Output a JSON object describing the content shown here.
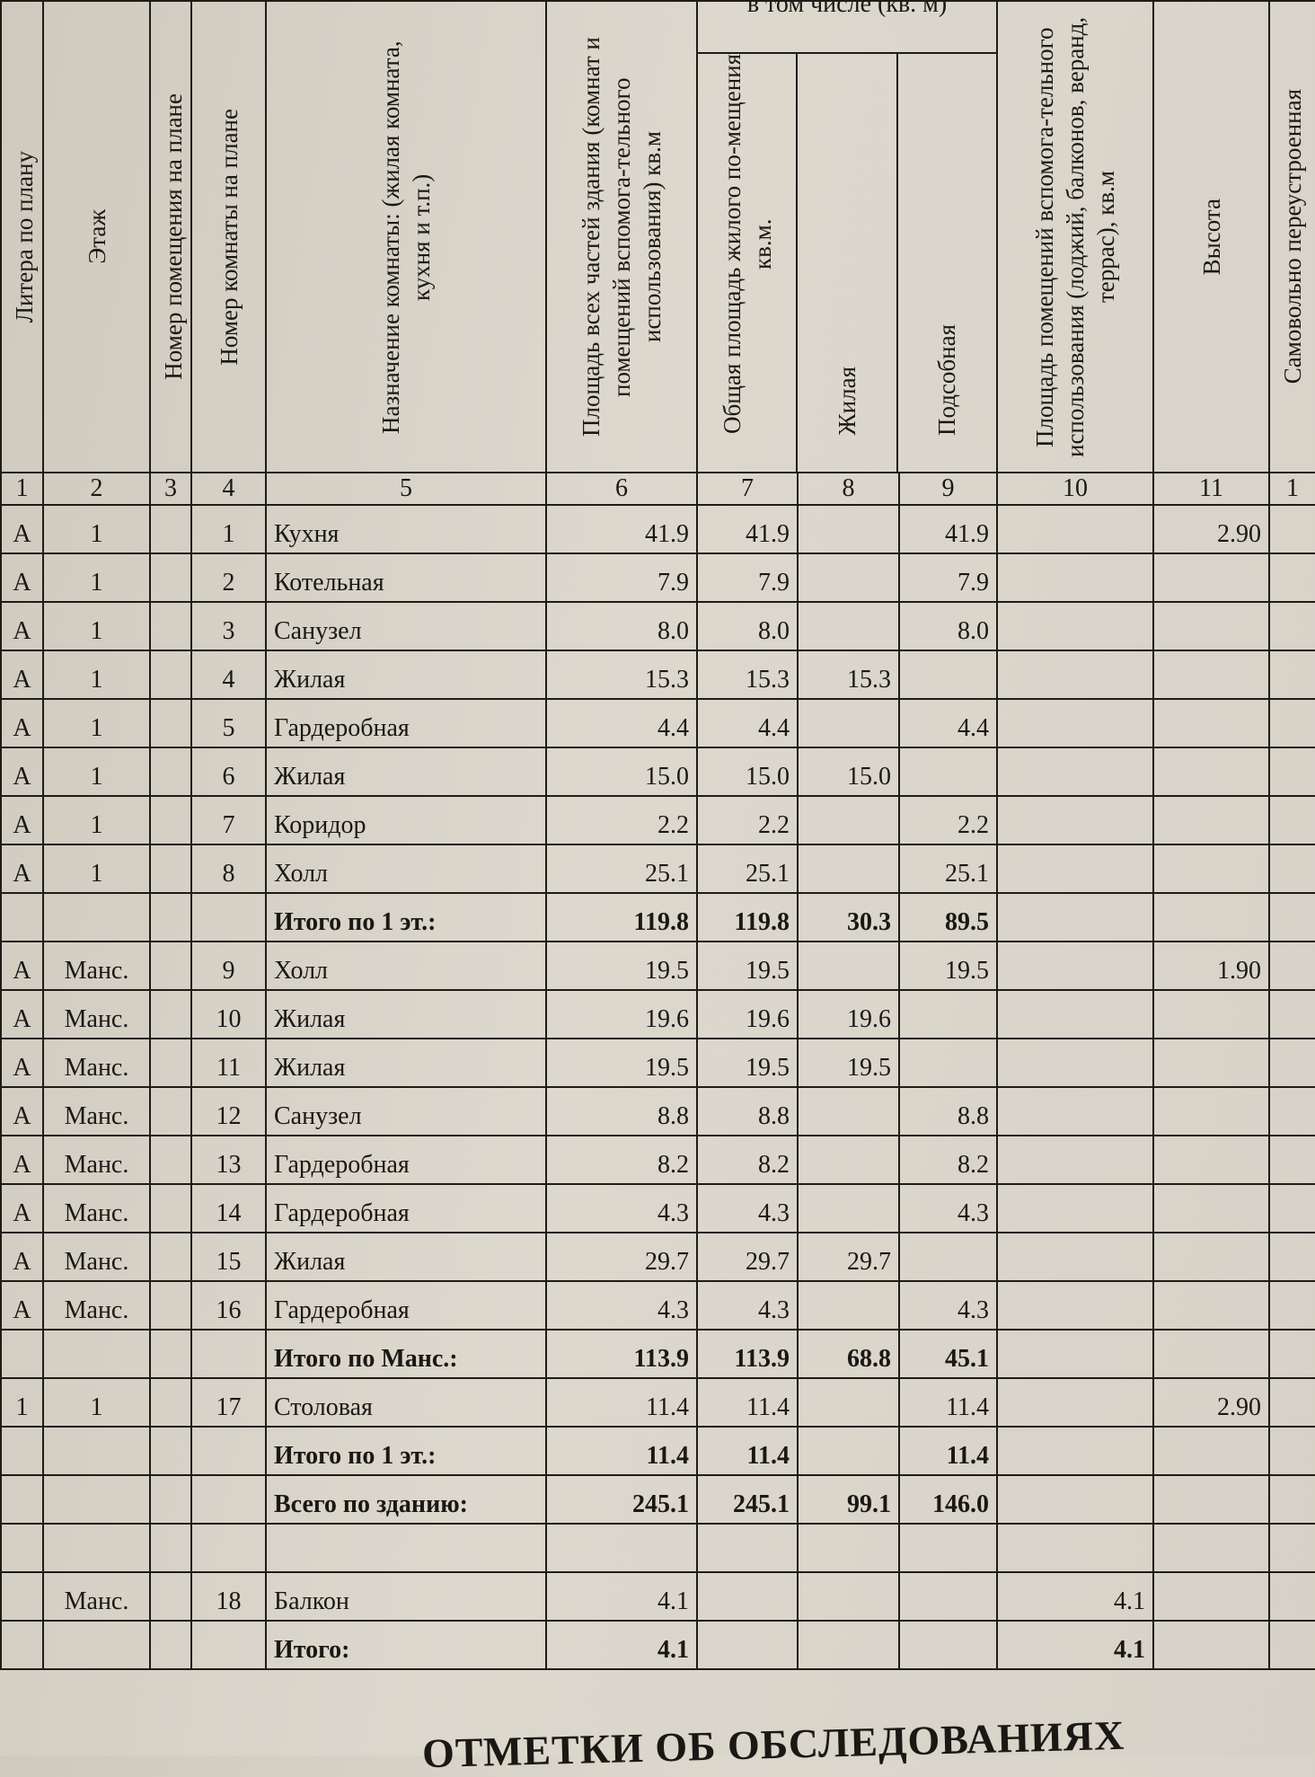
{
  "headers": {
    "c1": "Литера по плану",
    "c2": "Этаж",
    "c3": "Номер помещения на плане",
    "c4": "Номер комнаты на плане",
    "c5": "Назначение комнаты: (жилая комната, кухня и т.п.)",
    "c6": "Площадь всех частей здания (комнат и помещений вспомога-тельного использования) кв.м",
    "group": "в том числе (кв. м)",
    "c7": "Общая площадь жилого по-мещения кв.м.",
    "c8": "Жилая",
    "c9": "Подсобная",
    "c10": "Площадь помещений вспомога-тельного использования (лоджий, балконов, веранд, террас), кв.м",
    "c11": "Высота",
    "c12": "Самовольно переустроенная"
  },
  "column_numbers": [
    "1",
    "2",
    "3",
    "4",
    "5",
    "6",
    "7",
    "8",
    "9",
    "10",
    "11",
    "1"
  ],
  "rows": [
    {
      "lit": "А",
      "floor": "1",
      "room": "1",
      "name": "Кухня",
      "total": "41.9",
      "common": "41.9",
      "living": "",
      "aux": "41.9",
      "balcony": "",
      "height": "2.90",
      "total_row": false
    },
    {
      "lit": "А",
      "floor": "1",
      "room": "2",
      "name": "Котельная",
      "total": "7.9",
      "common": "7.9",
      "living": "",
      "aux": "7.9",
      "balcony": "",
      "height": "",
      "total_row": false
    },
    {
      "lit": "А",
      "floor": "1",
      "room": "3",
      "name": "Санузел",
      "total": "8.0",
      "common": "8.0",
      "living": "",
      "aux": "8.0",
      "balcony": "",
      "height": "",
      "total_row": false
    },
    {
      "lit": "А",
      "floor": "1",
      "room": "4",
      "name": "Жилая",
      "total": "15.3",
      "common": "15.3",
      "living": "15.3",
      "aux": "",
      "balcony": "",
      "height": "",
      "total_row": false
    },
    {
      "lit": "А",
      "floor": "1",
      "room": "5",
      "name": "Гардеробная",
      "total": "4.4",
      "common": "4.4",
      "living": "",
      "aux": "4.4",
      "balcony": "",
      "height": "",
      "total_row": false
    },
    {
      "lit": "А",
      "floor": "1",
      "room": "6",
      "name": "Жилая",
      "total": "15.0",
      "common": "15.0",
      "living": "15.0",
      "aux": "",
      "balcony": "",
      "height": "",
      "total_row": false
    },
    {
      "lit": "А",
      "floor": "1",
      "room": "7",
      "name": "Коридор",
      "total": "2.2",
      "common": "2.2",
      "living": "",
      "aux": "2.2",
      "balcony": "",
      "height": "",
      "total_row": false
    },
    {
      "lit": "А",
      "floor": "1",
      "room": "8",
      "name": "Холл",
      "total": "25.1",
      "common": "25.1",
      "living": "",
      "aux": "25.1",
      "balcony": "",
      "height": "",
      "total_row": false
    },
    {
      "lit": "",
      "floor": "",
      "room": "",
      "name": "Итого по 1 эт.:",
      "total": "119.8",
      "common": "119.8",
      "living": "30.3",
      "aux": "89.5",
      "balcony": "",
      "height": "",
      "total_row": true
    },
    {
      "lit": "А",
      "floor": "Манс.",
      "room": "9",
      "name": "Холл",
      "total": "19.5",
      "common": "19.5",
      "living": "",
      "aux": "19.5",
      "balcony": "",
      "height": "1.90",
      "total_row": false
    },
    {
      "lit": "А",
      "floor": "Манс.",
      "room": "10",
      "name": "Жилая",
      "total": "19.6",
      "common": "19.6",
      "living": "19.6",
      "aux": "",
      "balcony": "",
      "height": "",
      "total_row": false
    },
    {
      "lit": "А",
      "floor": "Манс.",
      "room": "11",
      "name": "Жилая",
      "total": "19.5",
      "common": "19.5",
      "living": "19.5",
      "aux": "",
      "balcony": "",
      "height": "",
      "total_row": false
    },
    {
      "lit": "А",
      "floor": "Манс.",
      "room": "12",
      "name": "Санузел",
      "total": "8.8",
      "common": "8.8",
      "living": "",
      "aux": "8.8",
      "balcony": "",
      "height": "",
      "total_row": false
    },
    {
      "lit": "А",
      "floor": "Манс.",
      "room": "13",
      "name": "Гардеробная",
      "total": "8.2",
      "common": "8.2",
      "living": "",
      "aux": "8.2",
      "balcony": "",
      "height": "",
      "total_row": false
    },
    {
      "lit": "А",
      "floor": "Манс.",
      "room": "14",
      "name": "Гардеробная",
      "total": "4.3",
      "common": "4.3",
      "living": "",
      "aux": "4.3",
      "balcony": "",
      "height": "",
      "total_row": false
    },
    {
      "lit": "А",
      "floor": "Манс.",
      "room": "15",
      "name": "Жилая",
      "total": "29.7",
      "common": "29.7",
      "living": "29.7",
      "aux": "",
      "balcony": "",
      "height": "",
      "total_row": false
    },
    {
      "lit": "А",
      "floor": "Манс.",
      "room": "16",
      "name": "Гардеробная",
      "total": "4.3",
      "common": "4.3",
      "living": "",
      "aux": "4.3",
      "balcony": "",
      "height": "",
      "total_row": false
    },
    {
      "lit": "",
      "floor": "",
      "room": "",
      "name": "Итого по Манс.:",
      "total": "113.9",
      "common": "113.9",
      "living": "68.8",
      "aux": "45.1",
      "balcony": "",
      "height": "",
      "total_row": true
    },
    {
      "lit": "1",
      "floor": "1",
      "room": "17",
      "name": "Столовая",
      "total": "11.4",
      "common": "11.4",
      "living": "",
      "aux": "11.4",
      "balcony": "",
      "height": "2.90",
      "total_row": false
    },
    {
      "lit": "",
      "floor": "",
      "room": "",
      "name": "Итого по 1 эт.:",
      "total": "11.4",
      "common": "11.4",
      "living": "",
      "aux": "11.4",
      "balcony": "",
      "height": "",
      "total_row": true
    },
    {
      "lit": "",
      "floor": "",
      "room": "",
      "name": "Всего по зданию:",
      "total": "245.1",
      "common": "245.1",
      "living": "99.1",
      "aux": "146.0",
      "balcony": "",
      "height": "",
      "total_row": true
    },
    {
      "lit": "",
      "floor": "",
      "room": "",
      "name": "",
      "total": "",
      "common": "",
      "living": "",
      "aux": "",
      "balcony": "",
      "height": "",
      "total_row": false
    },
    {
      "lit": "",
      "floor": "Манс.",
      "room": "18",
      "name": "Балкон",
      "total": "4.1",
      "common": "",
      "living": "",
      "aux": "",
      "balcony": "4.1",
      "height": "",
      "total_row": false
    },
    {
      "lit": "",
      "floor": "",
      "room": "",
      "name": "Итого:",
      "total": "4.1",
      "common": "",
      "living": "",
      "aux": "",
      "balcony": "4.1",
      "height": "",
      "total_row": true
    }
  ],
  "footer_title": "ОТМЕТКИ ОБ ОБСЛЕДОВАНИЯХ"
}
